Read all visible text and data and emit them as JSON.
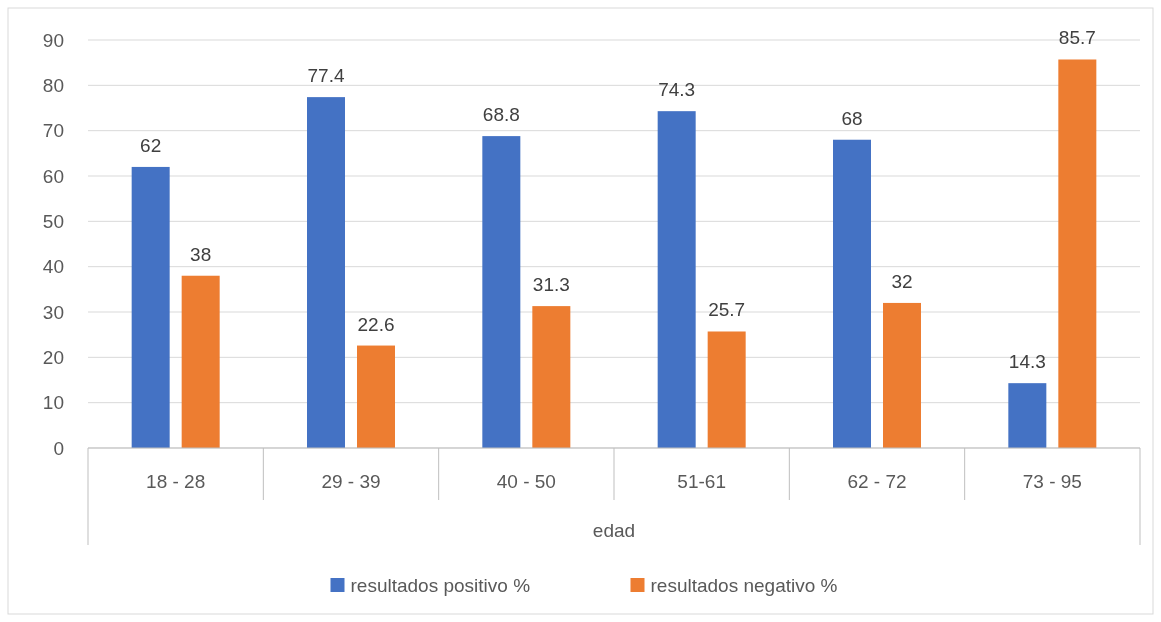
{
  "chart_data": {
    "type": "bar",
    "xlabel": "edad",
    "categories": [
      "18 - 28",
      "29 - 39",
      "40 - 50",
      "51-61",
      "62 - 72",
      "73 - 95"
    ],
    "series": [
      {
        "name": "resultados positivo %",
        "color": "#4472c4",
        "values": [
          62,
          77.4,
          68.8,
          74.3,
          68,
          14.3
        ]
      },
      {
        "name": "resultados negativo %",
        "color": "#ed7d31",
        "values": [
          38,
          22.6,
          31.3,
          25.7,
          32,
          85.7
        ]
      }
    ],
    "ylim": [
      0,
      90
    ],
    "yticks": [
      0,
      10,
      20,
      30,
      40,
      50,
      60,
      70,
      80,
      90
    ],
    "grid": "y",
    "legend": "bottom",
    "data_labels": true
  }
}
